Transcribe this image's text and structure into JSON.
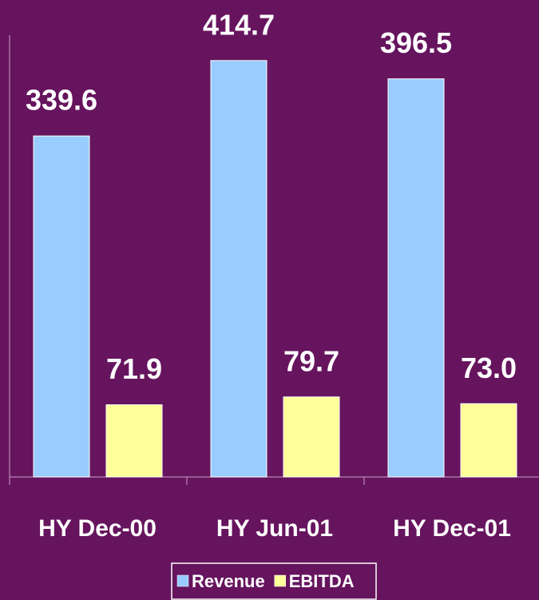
{
  "chart_data": {
    "type": "bar",
    "categories": [
      "HY Dec-00",
      "HY Jun-01",
      "HY Dec-01"
    ],
    "series": [
      {
        "name": "Revenue",
        "color": "#99ccff",
        "values": [
          339.6,
          414.7,
          396.5
        ],
        "value_labels": [
          "339.6",
          "414.7",
          "396.5"
        ]
      },
      {
        "name": "EBITDA",
        "color": "#ffff99",
        "values": [
          71.9,
          79.7,
          73
        ],
        "value_labels": [
          "71.9",
          "79.7",
          "73.0"
        ]
      }
    ],
    "ylim": [
      0,
      440
    ],
    "legend": "bottom"
  }
}
